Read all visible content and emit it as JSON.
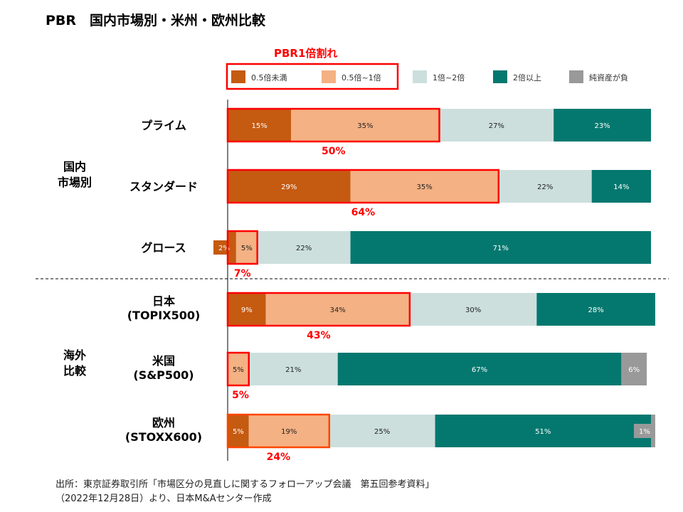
{
  "title": "PBR　国内市場別・米州・欧州比較",
  "source_line1": "出所：東京証券取引所「市場区分の見直しに関するフォローアップ会議　第五回参考資料」",
  "source_line2": "（2022年12月28日）より、日本M&Aセンター作成",
  "chart_data": {
    "type": "bar",
    "orientation": "horizontal-stacked-100",
    "highlight_label": "PBR1倍割れ",
    "groups": [
      {
        "label": [
          "国内",
          "市場別"
        ],
        "categories": [
          "プライム",
          "スタンダード",
          "グロース"
        ]
      },
      {
        "label": [
          "海外",
          "比較"
        ],
        "categories": [
          "日本 (TOPIX500)",
          "米国 (S&P500)",
          "欧州 (STOXX600)"
        ]
      }
    ],
    "categories": [
      [
        "プライム"
      ],
      [
        "スタンダード"
      ],
      [
        "グロース"
      ],
      [
        "日本",
        "(TOPIX500)"
      ],
      [
        "米国",
        "(S&P500)"
      ],
      [
        "欧州",
        "(STOXX600)"
      ]
    ],
    "series": [
      {
        "name": "0.5倍未満",
        "color": "#C55A11",
        "values": [
          15,
          29,
          2,
          9,
          0,
          5
        ]
      },
      {
        "name": "0.5倍~1倍",
        "color": "#F4B183",
        "values": [
          35,
          35,
          5,
          34,
          5,
          19
        ]
      },
      {
        "name": "1倍~2倍",
        "color": "#CCDFDD",
        "values": [
          27,
          22,
          22,
          30,
          21,
          25
        ]
      },
      {
        "name": "2倍以上",
        "color": "#04786F",
        "values": [
          23,
          14,
          71,
          28,
          67,
          51
        ]
      },
      {
        "name": "純資産が負",
        "color": "#999999",
        "values": [
          0,
          0,
          0,
          0,
          6,
          1
        ]
      }
    ],
    "pbr_below_1_totals": [
      "50%",
      "64%",
      "7%",
      "43%",
      "5%",
      "24%"
    ],
    "highlight_color": "#FF0000",
    "xlim": [
      0,
      100
    ]
  }
}
